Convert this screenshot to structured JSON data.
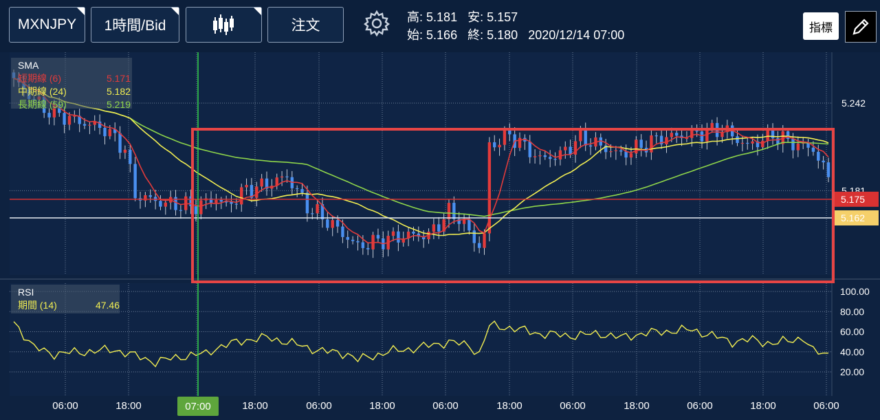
{
  "toolbar": {
    "symbol": "MXNJPY",
    "timeframe": "1時間/Bid",
    "order": "注文",
    "indicator": "指標",
    "ohlc": {
      "high_label": "高:",
      "high": "5.181",
      "low_label": "安:",
      "low": "5.157",
      "open_label": "始:",
      "open": "5.166",
      "close_label": "終:",
      "close": "5.180",
      "datetime": "2020/12/14 07:00"
    }
  },
  "sma": {
    "title": "SMA",
    "short": {
      "label": "短期線 (6)",
      "value": "5.171",
      "color": "#e23b3b"
    },
    "mid": {
      "label": "中期線 (24)",
      "value": "5.182",
      "color": "#f2ee52"
    },
    "long": {
      "label": "長期線 (59)",
      "value": "5.219",
      "color": "#8fd64a"
    }
  },
  "rsi": {
    "title": "RSI",
    "period_label": "期間 (14)",
    "value": "47.46",
    "color": "#f2ee52"
  },
  "price_axis": {
    "ticks": [
      {
        "label": "5.242",
        "price": 5.242
      },
      {
        "label": "5.181",
        "price": 5.181
      }
    ]
  },
  "price_tags": [
    {
      "label": "5.175",
      "price": 5.175,
      "color": "#d83232"
    },
    {
      "label": "5.162",
      "price": 5.162,
      "color": "#f5d06a"
    }
  ],
  "rsi_axis": [
    "100.00",
    "80.00",
    "60.00",
    "40.00",
    "20.00"
  ],
  "time_axis": [
    "06:00",
    "18:00",
    "07:00",
    "18:00",
    "06:00",
    "18:00",
    "06:00",
    "18:00",
    "06:00",
    "18:00",
    "06:00",
    "18:00",
    "06:00"
  ],
  "crosshair_label": "07:00",
  "colors": {
    "up": "#e23b3b",
    "down": "#4a8ff0",
    "highlight_box": "#e64545",
    "crosshair": "#33d14a"
  }
}
